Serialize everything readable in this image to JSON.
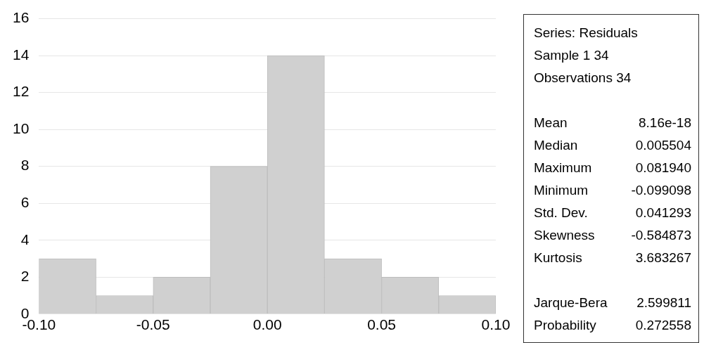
{
  "chart_data": [
    {
      "type": "histogram",
      "bins": [
        -0.1,
        -0.075,
        -0.05,
        -0.025,
        0,
        0.025,
        0.05,
        0.075,
        0.1
      ],
      "values": [
        3,
        1,
        2,
        8,
        14,
        3,
        2,
        1
      ],
      "color": "#d0d0d0",
      "xlim": [
        -0.1,
        0.1
      ],
      "xticks": [
        {
          "value": -0.1,
          "label": "-0.10"
        },
        {
          "value": -0.05,
          "label": "-0.05"
        },
        {
          "value": 0,
          "label": "0.00"
        },
        {
          "value": 0.05,
          "label": "0.05"
        },
        {
          "value": 0.1,
          "label": "0.10"
        }
      ],
      "ylim": [
        0,
        16
      ],
      "yticks": [
        0,
        2,
        4,
        6,
        8,
        10,
        12,
        14,
        16
      ],
      "grid": "y",
      "legend": false
    },
    {
      "type": "other",
      "title": "Series: Residuals",
      "annotations": [
        "Sample 1 34",
        "Observations 34"
      ],
      "categories": [
        "Mean",
        "Median",
        "Maximum",
        "Minimum",
        "Std. Dev.",
        "Skewness",
        "Kurtosis",
        null,
        "Jarque-Bera",
        "Probability"
      ],
      "value_labels": [
        "8.16e-18",
        "0.005504",
        "0.081940",
        "-0.099098",
        "0.041293",
        "-0.584873",
        "3.683267",
        null,
        "2.599811",
        "0.272558"
      ]
    }
  ]
}
